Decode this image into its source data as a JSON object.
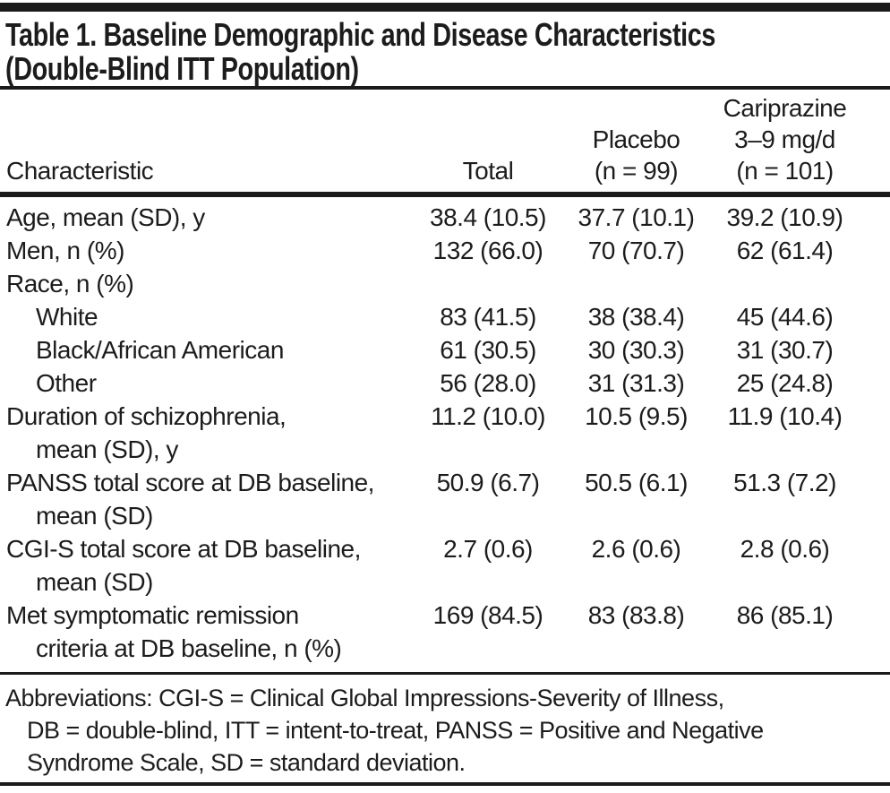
{
  "colors": {
    "text": "#1c1c1c",
    "rule": "#1a1a1a",
    "background": "#ffffff"
  },
  "title": {
    "lines": [
      "Table 1. Baseline Demographic and Disease Characteristics",
      "(Double-Blind ITT Population)"
    ]
  },
  "table": {
    "columns": [
      {
        "key": "characteristic",
        "lines": [
          "Characteristic"
        ]
      },
      {
        "key": "total",
        "lines": [
          "Total"
        ]
      },
      {
        "key": "placebo",
        "lines": [
          "Placebo",
          "(n = 99)"
        ]
      },
      {
        "key": "cariprazine",
        "lines": [
          "Cariprazine",
          "3–9 mg/d",
          "(n = 101)"
        ]
      }
    ],
    "rows": [
      {
        "indent": 0,
        "label_lines": [
          "Age, mean (SD), y"
        ],
        "values": [
          "38.4 (10.5)",
          "37.7 (10.1)",
          "39.2 (10.9)"
        ]
      },
      {
        "indent": 0,
        "label_lines": [
          "Men, n (%)"
        ],
        "values": [
          "132 (66.0)",
          "70 (70.7)",
          "62 (61.4)"
        ]
      },
      {
        "indent": 0,
        "label_lines": [
          "Race, n (%)"
        ],
        "values": [
          "",
          "",
          ""
        ]
      },
      {
        "indent": 1,
        "label_lines": [
          "White"
        ],
        "values": [
          "83 (41.5)",
          "38 (38.4)",
          "45 (44.6)"
        ]
      },
      {
        "indent": 1,
        "label_lines": [
          "Black/African American"
        ],
        "values": [
          "61 (30.5)",
          "30 (30.3)",
          "31 (30.7)"
        ]
      },
      {
        "indent": 1,
        "label_lines": [
          "Other"
        ],
        "values": [
          "56 (28.0)",
          "31 (31.3)",
          "25 (24.8)"
        ]
      },
      {
        "indent": 0,
        "label_lines": [
          "Duration of schizophrenia,",
          "mean (SD), y"
        ],
        "values": [
          "11.2 (10.0)",
          "10.5 (9.5)",
          "11.9 (10.4)"
        ]
      },
      {
        "indent": 0,
        "label_lines": [
          "PANSS total score at DB baseline,",
          "mean (SD)"
        ],
        "values": [
          "50.9 (6.7)",
          "50.5 (6.1)",
          "51.3 (7.2)"
        ]
      },
      {
        "indent": 0,
        "label_lines": [
          "CGI-S total score at DB baseline,",
          "mean (SD)"
        ],
        "values": [
          "2.7 (0.6)",
          "2.6 (0.6)",
          "2.8 (0.6)"
        ]
      },
      {
        "indent": 0,
        "label_lines": [
          "Met symptomatic remission",
          "criteria at DB baseline, n (%)"
        ],
        "values": [
          "169 (84.5)",
          "83 (83.8)",
          "86 (85.1)"
        ]
      }
    ]
  },
  "footnote": {
    "lines": [
      "Abbreviations: CGI-S = Clinical Global Impressions-Severity of Illness,",
      "DB = double-blind, ITT = intent-to-treat, PANSS = Positive and Negative",
      "Syndrome Scale, SD = standard deviation."
    ]
  }
}
